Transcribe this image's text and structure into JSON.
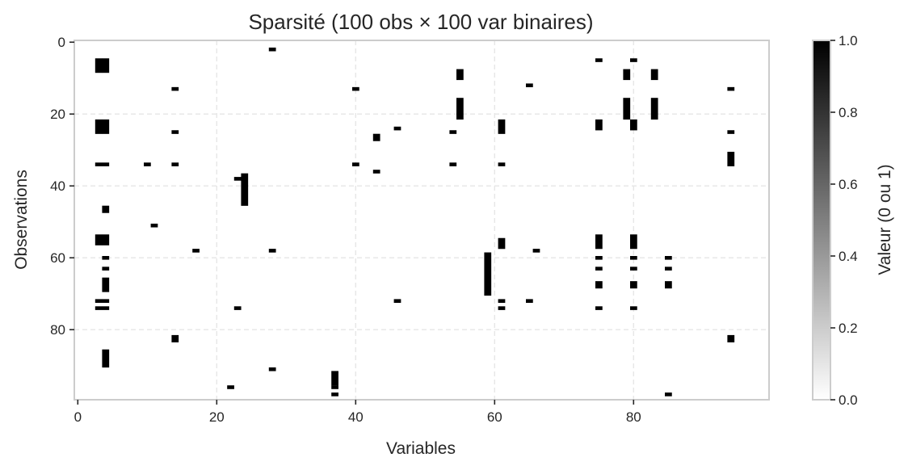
{
  "chart_data": {
    "type": "heatmap",
    "title": "Sparsité (100 obs × 100 var binaires)",
    "xlabel": "Variables",
    "ylabel": "Observations",
    "xlim": [
      0,
      99
    ],
    "ylim": [
      99,
      0
    ],
    "x_ticks": [
      "0",
      "20",
      "40",
      "60",
      "80"
    ],
    "y_ticks": [
      "0",
      "20",
      "40",
      "60",
      "80"
    ],
    "grid": true,
    "colormap": "white-to-black",
    "colorbar": {
      "label": "Valeur (0 ou 1)",
      "ticks": [
        "0.0",
        "0.2",
        "0.4",
        "0.6",
        "0.8",
        "1.0"
      ],
      "range": [
        0,
        1
      ]
    },
    "nonzero_runs_note": "each entry: [column, start_row, end_row] with value 1",
    "nonzero_runs": [
      [
        3,
        5,
        8
      ],
      [
        4,
        5,
        8
      ],
      [
        3,
        22,
        25
      ],
      [
        4,
        22,
        25
      ],
      [
        3,
        34,
        34
      ],
      [
        4,
        34,
        34
      ],
      [
        4,
        46,
        47
      ],
      [
        3,
        54,
        56
      ],
      [
        4,
        54,
        56
      ],
      [
        4,
        60,
        60
      ],
      [
        4,
        63,
        63
      ],
      [
        4,
        66,
        69
      ],
      [
        3,
        72,
        72
      ],
      [
        4,
        72,
        72
      ],
      [
        3,
        74,
        74
      ],
      [
        4,
        74,
        74
      ],
      [
        4,
        86,
        90
      ],
      [
        10,
        34,
        34
      ],
      [
        11,
        51,
        51
      ],
      [
        14,
        13,
        13
      ],
      [
        14,
        25,
        25
      ],
      [
        14,
        34,
        34
      ],
      [
        14,
        82,
        83
      ],
      [
        17,
        58,
        58
      ],
      [
        22,
        96,
        96
      ],
      [
        23,
        38,
        38
      ],
      [
        23,
        74,
        74
      ],
      [
        24,
        37,
        45
      ],
      [
        28,
        2,
        2
      ],
      [
        28,
        58,
        58
      ],
      [
        28,
        91,
        91
      ],
      [
        37,
        92,
        95
      ],
      [
        37,
        96,
        96
      ],
      [
        37,
        98,
        98
      ],
      [
        40,
        13,
        13
      ],
      [
        40,
        34,
        34
      ],
      [
        43,
        36,
        36
      ],
      [
        43,
        26,
        27
      ],
      [
        46,
        24,
        24
      ],
      [
        46,
        72,
        72
      ],
      [
        54,
        25,
        25
      ],
      [
        54,
        34,
        34
      ],
      [
        55,
        8,
        10
      ],
      [
        55,
        16,
        21
      ],
      [
        59,
        59,
        70
      ],
      [
        61,
        22,
        25
      ],
      [
        61,
        34,
        34
      ],
      [
        61,
        55,
        57
      ],
      [
        61,
        72,
        72
      ],
      [
        61,
        74,
        74
      ],
      [
        65,
        12,
        12
      ],
      [
        65,
        72,
        72
      ],
      [
        66,
        58,
        58
      ],
      [
        75,
        5,
        5
      ],
      [
        75,
        22,
        24
      ],
      [
        75,
        54,
        57
      ],
      [
        75,
        60,
        60
      ],
      [
        75,
        63,
        63
      ],
      [
        75,
        67,
        68
      ],
      [
        75,
        74,
        74
      ],
      [
        79,
        8,
        10
      ],
      [
        79,
        16,
        21
      ],
      [
        80,
        5,
        5
      ],
      [
        80,
        22,
        24
      ],
      [
        80,
        54,
        57
      ],
      [
        80,
        60,
        60
      ],
      [
        80,
        63,
        63
      ],
      [
        80,
        67,
        68
      ],
      [
        80,
        74,
        74
      ],
      [
        83,
        8,
        10
      ],
      [
        83,
        16,
        21
      ],
      [
        85,
        60,
        60
      ],
      [
        85,
        63,
        63
      ],
      [
        85,
        67,
        68
      ],
      [
        85,
        98,
        98
      ],
      [
        94,
        13,
        13
      ],
      [
        94,
        25,
        25
      ],
      [
        94,
        31,
        34
      ],
      [
        94,
        82,
        83
      ]
    ]
  }
}
